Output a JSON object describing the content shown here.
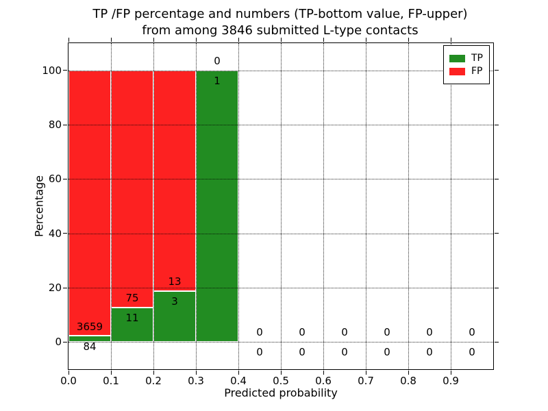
{
  "title": {
    "line1": "TP /FP percentage and numbers (TP-bottom value, FP-upper)",
    "line2": "from among 3846 submitted L-type contacts"
  },
  "colors": {
    "tp": "#228c22",
    "fp": "#fd2121",
    "background": "#ffffff",
    "grid": "#000000"
  },
  "chart_data": {
    "type": "bar",
    "stacked": true,
    "title": "TP /FP percentage and numbers (TP-bottom value, FP-upper) from among 3846 submitted L-type contacts",
    "xlabel": "Predicted probability",
    "ylabel": "Percentage",
    "xlim": [
      0.0,
      1.0
    ],
    "ylim": [
      -10,
      110
    ],
    "xtick_labels": [
      "0.0",
      "0.1",
      "0.2",
      "0.3",
      "0.4",
      "0.5",
      "0.6",
      "0.7",
      "0.8",
      "0.9"
    ],
    "yticks": [
      0,
      20,
      40,
      60,
      80,
      100
    ],
    "grid": "dotted",
    "legend_position": "upper right",
    "legend": [
      {
        "label": "TP",
        "color": "#228c22"
      },
      {
        "label": "FP",
        "color": "#fd2121"
      }
    ],
    "bins": [
      {
        "range": [
          0.0,
          0.1
        ],
        "tp_count": 84,
        "fp_count": 3659,
        "tp_pct": 2.24,
        "fp_pct": 97.76
      },
      {
        "range": [
          0.1,
          0.2
        ],
        "tp_count": 11,
        "fp_count": 75,
        "tp_pct": 12.79,
        "fp_pct": 87.21
      },
      {
        "range": [
          0.2,
          0.3
        ],
        "tp_count": 3,
        "fp_count": 13,
        "tp_pct": 18.75,
        "fp_pct": 81.25
      },
      {
        "range": [
          0.3,
          0.4
        ],
        "tp_count": 1,
        "fp_count": 0,
        "tp_pct": 100.0,
        "fp_pct": 0.0
      },
      {
        "range": [
          0.4,
          0.5
        ],
        "tp_count": 0,
        "fp_count": 0,
        "tp_pct": 0.0,
        "fp_pct": 0.0
      },
      {
        "range": [
          0.5,
          0.6
        ],
        "tp_count": 0,
        "fp_count": 0,
        "tp_pct": 0.0,
        "fp_pct": 0.0
      },
      {
        "range": [
          0.6,
          0.7
        ],
        "tp_count": 0,
        "fp_count": 0,
        "tp_pct": 0.0,
        "fp_pct": 0.0
      },
      {
        "range": [
          0.7,
          0.8
        ],
        "tp_count": 0,
        "fp_count": 0,
        "tp_pct": 0.0,
        "fp_pct": 0.0
      },
      {
        "range": [
          0.8,
          0.9
        ],
        "tp_count": 0,
        "fp_count": 0,
        "tp_pct": 0.0,
        "fp_pct": 0.0
      },
      {
        "range": [
          0.9,
          1.0
        ],
        "tp_count": 0,
        "fp_count": 0,
        "tp_pct": 0.0,
        "fp_pct": 0.0
      }
    ]
  }
}
